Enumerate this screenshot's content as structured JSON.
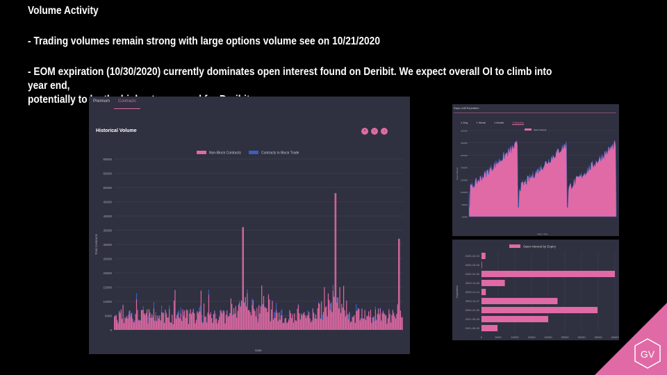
{
  "slide": {
    "title": "Volume Activity",
    "bullet1": "- Trading volumes remain strong with large options volume see on 10/21/2020",
    "bullet2_line1": "- EOM expiration (10/30/2020) currently dominates open interest found on Deribit. We expect overall OI to climb into year end,",
    "bullet2_line2": "potentially to be the highest on record for Deribit."
  },
  "logo": {
    "text": "GV",
    "color": "#e06aa5"
  },
  "volume_panel": {
    "tabs": [
      "Premium",
      "Contracts"
    ],
    "active_tab": "Contracts",
    "title": "Historical Volume",
    "icons": [
      "zoom-in-icon",
      "zoom-out-icon",
      "download-icon"
    ]
  },
  "oi_panel": {
    "header": "Days until Expiration",
    "tabs": [
      "1 Day",
      "1 Week",
      "1 Month",
      "3 Months"
    ],
    "active_tab": "3 Months"
  },
  "chart_data": [
    {
      "type": "bar",
      "title": "Historical Volume",
      "xlabel": "Date",
      "ylabel": "Total Contracts",
      "ylim": [
        0,
        60000
      ],
      "yticks": [
        0,
        5000,
        10000,
        15000,
        20000,
        25000,
        30000,
        35000,
        40000,
        45000,
        50000,
        55000,
        60000
      ],
      "legend": "top",
      "grid": true,
      "series": [
        {
          "name": "Non-Block Contracts",
          "color": "#e06aa5"
        },
        {
          "name": "Contracts in Block Trade",
          "color": "#3a5fc0"
        }
      ],
      "peaks": [
        {
          "label": "Jul",
          "fraction": 0.445,
          "values": [
            36000,
            1500
          ]
        },
        {
          "label": "Oct",
          "fraction": 0.765,
          "values": [
            48000,
            800
          ]
        },
        {
          "label": "end",
          "fraction": 0.985,
          "values": [
            32000,
            4000
          ]
        }
      ]
    },
    {
      "type": "area",
      "title": "",
      "xlabel": "Date / Time",
      "ylabel": "Open Interest",
      "ylim": [
        60000,
        200000
      ],
      "yticks": [
        60000,
        80000,
        100000,
        120000,
        140000,
        160000,
        180000,
        200000
      ],
      "legend": "top",
      "series": [
        {
          "name": "Open Interest",
          "color": "#e06aa5"
        }
      ],
      "cycles": 3
    },
    {
      "type": "bar",
      "orientation": "horizontal",
      "title": "",
      "ylabel": "Expiration",
      "xlabel": "",
      "xlim": [
        0,
        40000
      ],
      "xticks": [
        0,
        5000,
        10000,
        15000,
        20000,
        25000,
        30000,
        35000,
        40000
      ],
      "legend": "top",
      "series": [
        {
          "name": "Open Interest by Expiry",
          "color": "#e06aa5"
        }
      ],
      "categories": [
        "2020-10-23",
        "2020-10-26",
        "2020-10-30",
        "2020-11-06",
        "2020-11-13",
        "2020-11-27",
        "2020-12-25",
        "2021-03-26",
        "2021-06-25"
      ],
      "values": [
        1200,
        150,
        40000,
        7000,
        1300,
        22800,
        34800,
        20000,
        4800
      ]
    }
  ]
}
